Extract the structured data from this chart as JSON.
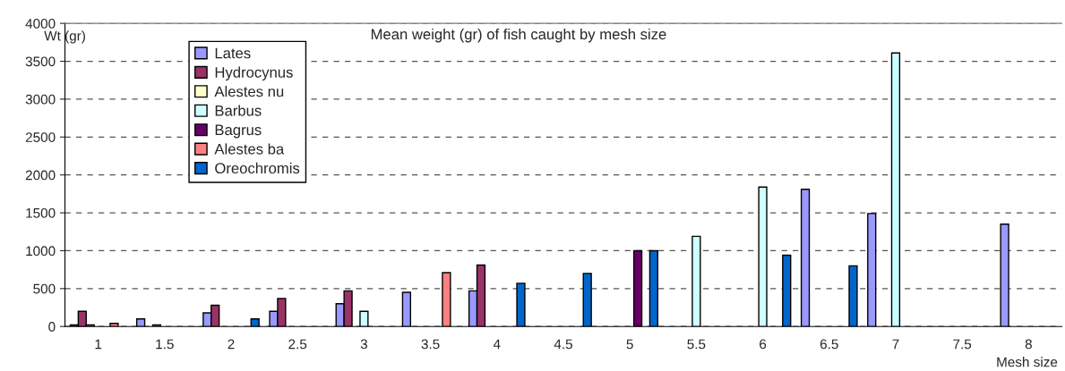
{
  "chart_data": {
    "type": "bar",
    "title": "Mean weight (gr) of fish caught by mesh size",
    "xlabel": "Mesh size",
    "ylabel": "Wt (gr)",
    "categories": [
      "1",
      "1.5",
      "2",
      "2.5",
      "3",
      "3.5",
      "4",
      "4.5",
      "5",
      "5.5",
      "6",
      "6.5",
      "7",
      "7.5",
      "8"
    ],
    "series": [
      {
        "name": "Lates",
        "color": "#9999ff",
        "values": [
          20,
          100,
          180,
          200,
          300,
          450,
          470,
          null,
          null,
          null,
          null,
          1810,
          1490,
          null,
          1350
        ]
      },
      {
        "name": "Hydrocynus",
        "color": "#993366",
        "values": [
          200,
          null,
          280,
          370,
          470,
          null,
          810,
          null,
          null,
          null,
          null,
          null,
          null,
          null,
          null
        ]
      },
      {
        "name": "Alestes nu",
        "color": "#ffffcc",
        "values": [
          20,
          20,
          null,
          null,
          null,
          null,
          null,
          null,
          null,
          null,
          null,
          null,
          null,
          null,
          null
        ]
      },
      {
        "name": "Barbus",
        "color": "#ccffff",
        "values": [
          null,
          null,
          null,
          null,
          200,
          null,
          null,
          null,
          null,
          1190,
          1840,
          null,
          3610,
          null,
          null
        ]
      },
      {
        "name": "Bagrus",
        "color": "#660066",
        "values": [
          null,
          null,
          null,
          null,
          null,
          null,
          null,
          null,
          1000,
          null,
          null,
          null,
          null,
          null,
          null
        ]
      },
      {
        "name": "Alestes ba",
        "color": "#ff8080",
        "values": [
          40,
          null,
          null,
          null,
          null,
          710,
          null,
          null,
          null,
          null,
          null,
          null,
          null,
          null,
          null
        ]
      },
      {
        "name": "Oreochromis",
        "color": "#0066cc",
        "values": [
          null,
          null,
          100,
          null,
          null,
          null,
          570,
          700,
          1000,
          null,
          940,
          800,
          null,
          null,
          null
        ]
      }
    ],
    "ylim": [
      0,
      4000
    ],
    "yticks": [
      0,
      500,
      1000,
      1500,
      2000,
      2500,
      3000,
      3500,
      4000
    ],
    "grid": "y",
    "legend": "top left"
  }
}
